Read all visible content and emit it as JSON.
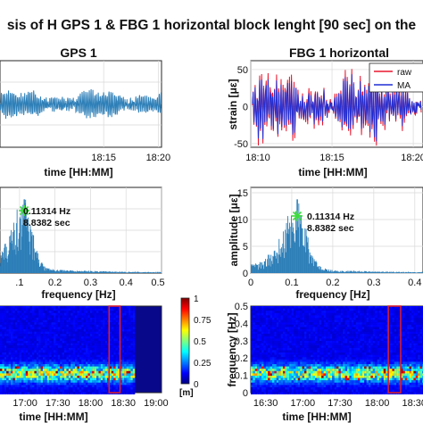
{
  "figure": {
    "title": "sis of H GPS 1 & FBG 1 horizontal block lenght [90 sec] on the"
  },
  "colors": {
    "gps_line": "#2d7fb8",
    "raw": "#e8162e",
    "ma": "#1f2fd6",
    "peak_marker": "#3ddc3d",
    "window_box": "#d81e2c",
    "spectrum_bar": "#2d7fb8"
  },
  "chart_data": [
    {
      "id": "gps-time",
      "type": "line",
      "title": "GPS 1",
      "xlabel": "time [HH:MM]",
      "ylabel": "",
      "x_ticks": [
        "18:15",
        "18:20"
      ],
      "xlim_minutes": [
        1085.5,
        1100.3
      ],
      "x_tick_minutes": [
        1095,
        1100
      ],
      "grid": true,
      "series": [
        {
          "name": "",
          "n_cycles": 90
        }
      ]
    },
    {
      "id": "fbg-time",
      "type": "line",
      "title": "FBG 1 horizontal",
      "xlabel": "time [HH:MM]",
      "ylabel": "strain [με]",
      "x_ticks": [
        "18:10",
        "18:15",
        "18:20"
      ],
      "xlim_minutes": [
        1090,
        1100.6
      ],
      "x_tick_minutes": [
        1090,
        1095,
        1100
      ],
      "y_ticks": [
        "50",
        "0",
        "-50"
      ],
      "y_tick_values": [
        50,
        0,
        -50
      ],
      "ylim": [
        -55,
        62
      ],
      "grid": true,
      "legend": {
        "placement": "top-right",
        "entries": [
          "raw",
          "MA"
        ]
      },
      "series": [
        {
          "name": "raw"
        },
        {
          "name": "MA"
        }
      ]
    },
    {
      "id": "gps-spectrum",
      "type": "bar",
      "title": "",
      "xlabel": "frequency [Hz]",
      "ylabel": "",
      "x_ticks": [
        ".1",
        "0.2",
        "0.3",
        "0.4",
        "0.5"
      ],
      "x_tick_values": [
        0.1,
        0.2,
        0.3,
        0.4,
        0.5
      ],
      "xlim": [
        0.045,
        0.5
      ],
      "ylim": [
        0,
        1
      ],
      "grid": true,
      "peak": {
        "frequency_hz": 0.11314,
        "period_sec": 8.8382,
        "label_freq": "0.11314 Hz",
        "label_period": "8.8382 sec"
      }
    },
    {
      "id": "fbg-spectrum",
      "type": "bar",
      "title": "",
      "xlabel": "frequency [Hz]",
      "ylabel": "amplitude [με]",
      "x_ticks": [
        "0",
        "0.1",
        "0.2",
        "0.3",
        "0.4"
      ],
      "x_tick_values": [
        0,
        0.1,
        0.2,
        0.3,
        0.4
      ],
      "xlim": [
        0,
        0.42
      ],
      "y_ticks": [
        "15",
        "10",
        "5",
        "0"
      ],
      "y_tick_values": [
        15,
        10,
        5,
        0
      ],
      "ylim": [
        0,
        16
      ],
      "grid": true,
      "peak": {
        "frequency_hz": 0.11314,
        "period_sec": 8.8382,
        "label_freq": "0.11314 Hz",
        "label_period": "8.8382 sec"
      }
    },
    {
      "id": "gps-spectrogram",
      "type": "heatmap",
      "title": "",
      "xlabel": "time [HH:MM]",
      "ylabel": "",
      "x_ticks": [
        "17:00",
        "17:30",
        "18:00",
        "18:30",
        "19:00"
      ],
      "x_tick_minutes": [
        1020,
        1050,
        1080,
        1110,
        1140
      ],
      "xlim_minutes": [
        997,
        1145
      ],
      "ylim": [
        0,
        0.5
      ],
      "window_minutes": [
        1097,
        1107
      ]
    },
    {
      "id": "colorbar",
      "type": "heatmap",
      "ticks": [
        "1",
        "0.75",
        "0.5",
        "0.25",
        "0"
      ],
      "tick_values": [
        1,
        0.75,
        0.5,
        0.25,
        0
      ],
      "range": [
        0,
        1
      ],
      "unit": "[m]"
    },
    {
      "id": "fbg-spectrogram",
      "type": "heatmap",
      "title": "",
      "xlabel": "time [HH:MM]",
      "ylabel": "frequency [Hz]",
      "x_ticks": [
        "16:30",
        "17:00",
        "17:30",
        "18:00",
        "18:30"
      ],
      "x_tick_minutes": [
        990,
        1020,
        1050,
        1080,
        1110
      ],
      "xlim_minutes": [
        978,
        1117
      ],
      "y_ticks": [
        "0.5",
        "0.4",
        "0.3",
        "0.2",
        "0.1",
        "0"
      ],
      "y_tick_values": [
        0.5,
        0.4,
        0.3,
        0.2,
        0.1,
        0
      ],
      "ylim": [
        0,
        0.5
      ],
      "window_minutes": [
        1089,
        1099
      ]
    }
  ]
}
